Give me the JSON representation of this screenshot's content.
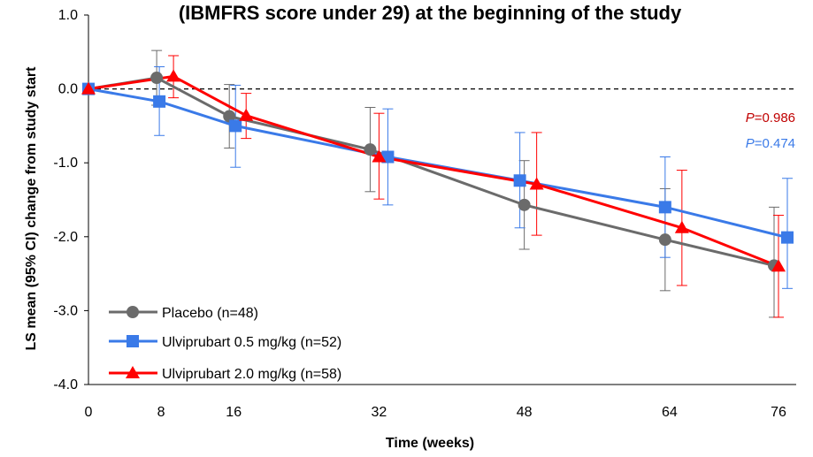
{
  "chart_data": {
    "type": "line",
    "title": "(IBMFRS score under 29) at the beginning of the study",
    "xlabel": "Time (weeks)",
    "ylabel": "LS mean (95% CI) change from study start",
    "x_ticks": [
      "0",
      "8",
      "16",
      "32",
      "48",
      "64",
      "76"
    ],
    "x": [
      0,
      8,
      16,
      32,
      48,
      64,
      76
    ],
    "ylim": [
      -4.0,
      1.0
    ],
    "y_ticks": [
      "1.0",
      "0.0",
      "-1.0",
      "-2.0",
      "-3.0",
      "-4.0"
    ],
    "reference_line": 0,
    "series": [
      {
        "name": "Placebo (n=48)",
        "color": "#6b6b6b",
        "marker": "circle",
        "values": [
          0,
          0.15,
          -0.37,
          -0.82,
          -1.57,
          -2.04,
          -2.39
        ],
        "ci_low": [
          0,
          -0.22,
          -0.8,
          -1.39,
          -2.17,
          -2.73,
          -3.09
        ],
        "ci_high": [
          0,
          0.52,
          0.06,
          -0.25,
          -0.97,
          -1.35,
          -1.6
        ]
      },
      {
        "name": "Ulviprubart 0.5 mg/kg (n=52)",
        "color": "#3a7ae8",
        "marker": "square",
        "values": [
          0,
          -0.17,
          -0.5,
          -0.92,
          -1.24,
          -1.6,
          -2.01
        ],
        "ci_low": [
          0,
          -0.63,
          -1.06,
          -1.57,
          -1.88,
          -2.28,
          -2.7
        ],
        "ci_high": [
          0,
          0.3,
          0.05,
          -0.27,
          -0.59,
          -0.92,
          -1.21
        ]
      },
      {
        "name": "Ulviprubart 2.0 mg/kg (n=58)",
        "color": "#ff0000",
        "marker": "triangle",
        "values": [
          0,
          0.17,
          -0.36,
          -0.92,
          -1.29,
          -1.88,
          -2.4
        ],
        "ci_low": [
          0,
          -0.12,
          -0.67,
          -1.49,
          -1.98,
          -2.66,
          -3.09
        ],
        "ci_high": [
          0,
          0.45,
          -0.06,
          -0.33,
          -0.59,
          -1.1,
          -1.71
        ]
      }
    ],
    "annotations": [
      {
        "prefix": "P",
        "value": "=0.986",
        "color": "#c00000"
      },
      {
        "prefix": "P",
        "value": "=0.474",
        "color": "#3a7ae8"
      }
    ],
    "legend_position": "bottom-left"
  }
}
